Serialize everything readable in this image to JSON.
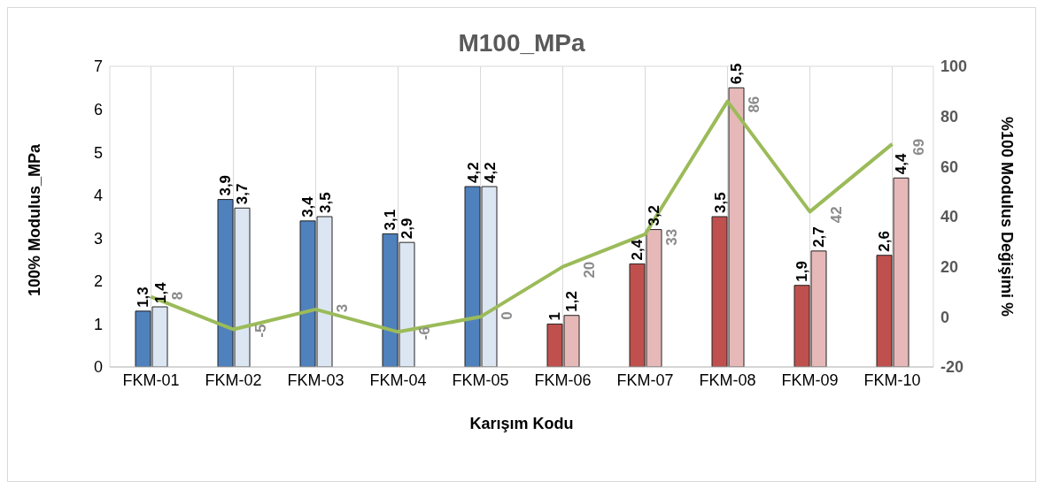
{
  "chart_data": {
    "type": "bar",
    "title": "M100_MPa",
    "xlabel": "Karışım Kodu",
    "ylabel": "100% Modulus_MPa",
    "y2label": "%100 Modulus Değişimi %",
    "categories": [
      "FKM-01",
      "FKM-02",
      "FKM-03",
      "FKM-04",
      "FKM-05",
      "FKM-06",
      "FKM-07",
      "FKM-08",
      "FKM-09",
      "FKM-10"
    ],
    "series": [
      {
        "colors": [
          "#4f81bd",
          "#4f81bd",
          "#4f81bd",
          "#4f81bd",
          "#4f81bd",
          "#c0504d",
          "#c0504d",
          "#c0504d",
          "#c0504d",
          "#c0504d"
        ],
        "values": [
          1.3,
          3.9,
          3.4,
          3.1,
          4.2,
          1,
          2.4,
          3.5,
          1.9,
          2.6
        ],
        "value_labels": [
          "1,3",
          "3,9",
          "3,4",
          "3,1",
          "4,2",
          "1",
          "2,4",
          "3,5",
          "1,9",
          "2,6"
        ]
      },
      {
        "colors": [
          "#dce6f2",
          "#dce6f2",
          "#dce6f2",
          "#dce6f2",
          "#dce6f2",
          "#e6b9b8",
          "#e6b9b8",
          "#e6b9b8",
          "#e6b9b8",
          "#e6b9b8"
        ],
        "values": [
          1.4,
          3.7,
          3.5,
          2.9,
          4.2,
          1.2,
          3.2,
          6.5,
          2.7,
          4.4
        ],
        "value_labels": [
          "1,4",
          "3,7",
          "3,5",
          "2,9",
          "4,2",
          "1,2",
          "3,2",
          "6,5",
          "2,7",
          "4,4"
        ]
      },
      {
        "type": "line",
        "axis": "y2",
        "color": "#9bbb59",
        "values": [
          8,
          -5,
          3,
          -6,
          0,
          20,
          33,
          86,
          42,
          69
        ],
        "value_labels": [
          "8",
          "-5",
          "3",
          "-6",
          "0",
          "20",
          "33",
          "86",
          "42",
          "69"
        ]
      }
    ],
    "ylim": [
      0,
      7
    ],
    "yticks": [
      0,
      1,
      2,
      3,
      4,
      5,
      6,
      7
    ],
    "y2lim": [
      -20,
      100
    ],
    "y2ticks": [
      -20,
      0,
      20,
      40,
      60,
      80,
      100
    ],
    "grid": true,
    "marker": "none"
  }
}
